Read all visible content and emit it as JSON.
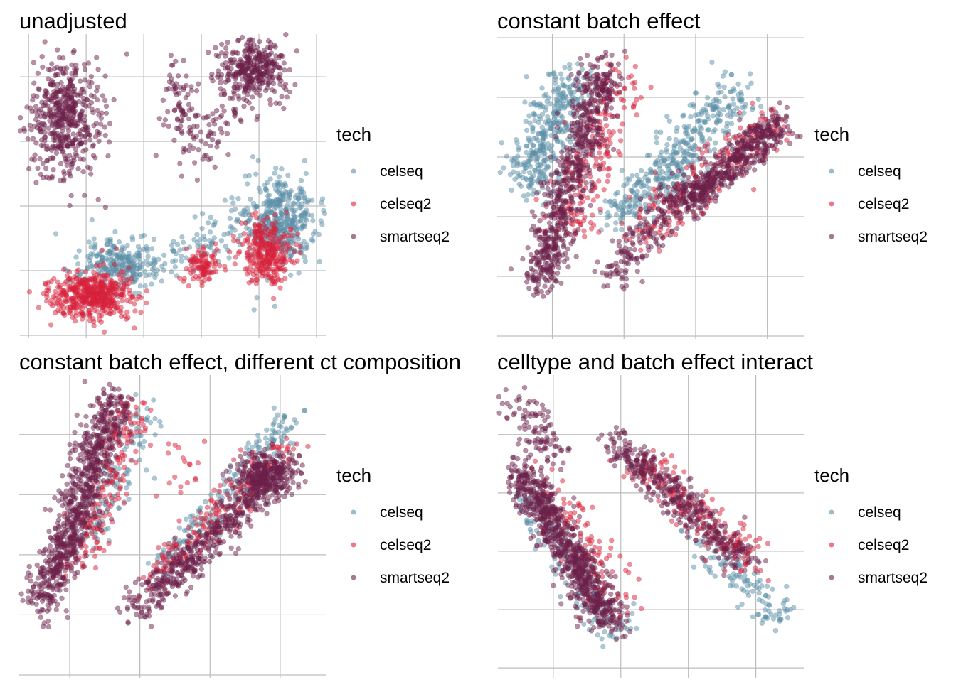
{
  "series_colors": {
    "celseq": "#5b8fa8",
    "celseq2": "#d8223b",
    "smartseq2": "#6b1f49"
  },
  "legend": {
    "title": "tech",
    "items": [
      "celseq",
      "celseq2",
      "smartseq2"
    ]
  },
  "chart_data": [
    {
      "type": "scatter",
      "title": "unadjusted",
      "grid": true,
      "axis_tick_labels": false,
      "xbreaks": [
        0,
        1,
        2,
        3,
        4,
        5
      ],
      "ybreaks": [
        0,
        1,
        2,
        3,
        4
      ],
      "xlim": [
        -0.15,
        5.16
      ],
      "ylim": [
        0,
        4.66
      ],
      "clusters": [
        {
          "series": "celseq",
          "from": [
            4.38,
            1.78
          ],
          "to": [
            4.38,
            1.78
          ],
          "spread": [
            0.3,
            0.33
          ],
          "n": 400
        },
        {
          "series": "celseq",
          "from": [
            1.2,
            1.2
          ],
          "to": [
            1.9,
            1.0
          ],
          "spread": [
            0.25,
            0.2
          ],
          "n": 250
        },
        {
          "series": "celseq",
          "from": [
            2.3,
            1.1
          ],
          "to": [
            3.7,
            1.8
          ],
          "spread": [
            0.2,
            0.18
          ],
          "n": 80
        },
        {
          "series": "celseq2",
          "from": [
            1.11,
            0.63
          ],
          "to": [
            1.11,
            0.63
          ],
          "spread": [
            0.35,
            0.18
          ],
          "n": 500
        },
        {
          "series": "celseq2",
          "from": [
            3.02,
            1.07
          ],
          "to": [
            3.02,
            1.07
          ],
          "spread": [
            0.15,
            0.14
          ],
          "n": 100
        },
        {
          "series": "celseq2",
          "from": [
            4.14,
            1.29
          ],
          "to": [
            4.14,
            1.29
          ],
          "spread": [
            0.22,
            0.24
          ],
          "n": 300
        },
        {
          "series": "smartseq2",
          "from": [
            0.62,
            3.37
          ],
          "to": [
            0.62,
            3.37
          ],
          "spread": [
            0.3,
            0.45
          ],
          "n": 500
        },
        {
          "series": "smartseq2",
          "from": [
            3.89,
            4.09
          ],
          "to": [
            3.89,
            4.09
          ],
          "spread": [
            0.3,
            0.25
          ],
          "n": 350
        },
        {
          "series": "smartseq2",
          "from": [
            2.6,
            3.5
          ],
          "to": [
            2.6,
            3.5
          ],
          "spread": [
            0.15,
            0.4
          ],
          "n": 80
        },
        {
          "series": "smartseq2",
          "from": [
            3.0,
            2.9
          ],
          "to": [
            3.6,
            3.6
          ],
          "spread": [
            0.2,
            0.2
          ],
          "n": 60
        }
      ]
    },
    {
      "type": "scatter",
      "title": "constant batch effect",
      "grid": true,
      "axis_tick_labels": false,
      "xbreaks": [
        1,
        2,
        3,
        4
      ],
      "ybreaks": [
        0,
        1,
        2,
        3,
        4,
        5
      ],
      "xlim": [
        0.23,
        4.51
      ],
      "ylim": [
        0,
        5.06
      ],
      "clusters": [
        {
          "series": "celseq",
          "from": [
            0.64,
            2.54
          ],
          "to": [
            1.23,
            4.32
          ],
          "spread": [
            0.2,
            0.2
          ],
          "n": 350
        },
        {
          "series": "celseq",
          "from": [
            1.93,
            1.94
          ],
          "to": [
            3.61,
            4.2
          ],
          "spread": [
            0.2,
            0.2
          ],
          "n": 400
        },
        {
          "series": "celseq2",
          "from": [
            1.23,
            1.7
          ],
          "to": [
            2.03,
            4.44
          ],
          "spread": [
            0.2,
            0.2
          ],
          "n": 200
        },
        {
          "series": "celseq2",
          "from": [
            2.22,
            1.7
          ],
          "to": [
            4.11,
            3.61
          ],
          "spread": [
            0.18,
            0.18
          ],
          "n": 200
        },
        {
          "series": "smartseq2",
          "from": [
            0.83,
            0.87
          ],
          "to": [
            1.73,
            4.56
          ],
          "spread": [
            0.15,
            0.15
          ],
          "n": 700
        },
        {
          "series": "smartseq2",
          "from": [
            2.82,
            2.18
          ],
          "to": [
            4.21,
            3.61
          ],
          "spread": [
            0.13,
            0.13
          ],
          "n": 500
        },
        {
          "series": "smartseq2",
          "from": [
            1.83,
            0.99
          ],
          "to": [
            3.02,
            2.65
          ],
          "spread": [
            0.15,
            0.15
          ],
          "n": 200
        }
      ]
    },
    {
      "type": "scatter",
      "title": "constant batch effect, different ct composition",
      "grid": true,
      "axis_tick_labels": false,
      "xbreaks": [
        1,
        2,
        3,
        4
      ],
      "ybreaks": [
        0,
        1,
        2,
        3,
        4
      ],
      "xlim": [
        0.28,
        4.65
      ],
      "ylim": [
        0,
        4.99
      ],
      "clusters": [
        {
          "series": "celseq",
          "from": [
            1.32,
            2.25
          ],
          "to": [
            2.03,
            4.38
          ],
          "spread": [
            0.15,
            0.15
          ],
          "n": 120
        },
        {
          "series": "celseq",
          "from": [
            2.34,
            1.78
          ],
          "to": [
            4.26,
            4.38
          ],
          "spread": [
            0.13,
            0.13
          ],
          "n": 200
        },
        {
          "series": "celseq2",
          "from": [
            1.12,
            1.78
          ],
          "to": [
            1.93,
            4.5
          ],
          "spread": [
            0.15,
            0.15
          ],
          "n": 200
        },
        {
          "series": "celseq2",
          "from": [
            2.13,
            1.54
          ],
          "to": [
            4.06,
            3.79
          ],
          "spread": [
            0.15,
            0.15
          ],
          "n": 200
        },
        {
          "series": "celseq2",
          "from": [
            2.64,
            3.43
          ],
          "to": [
            2.64,
            3.43
          ],
          "spread": [
            0.3,
            0.3
          ],
          "n": 20
        },
        {
          "series": "smartseq2",
          "from": [
            0.62,
            1.18
          ],
          "to": [
            1.63,
            4.62
          ],
          "spread": [
            0.15,
            0.15
          ],
          "n": 800
        },
        {
          "series": "smartseq2",
          "from": [
            1.93,
            1.07
          ],
          "to": [
            4.16,
            3.55
          ],
          "spread": [
            0.15,
            0.15
          ],
          "n": 500
        },
        {
          "series": "smartseq2",
          "from": [
            3.76,
            3.31
          ],
          "to": [
            3.76,
            3.31
          ],
          "spread": [
            0.2,
            0.2
          ],
          "n": 250
        }
      ]
    },
    {
      "type": "scatter",
      "title": "celltype and batch effect interact",
      "grid": true,
      "axis_tick_labels": false,
      "xbreaks": [
        1,
        2,
        3,
        4
      ],
      "ybreaks": [
        0,
        1,
        2,
        3,
        4
      ],
      "xlim": [
        0.18,
        4.71
      ],
      "ylim": [
        -0.12,
        5.02
      ],
      "clusters": [
        {
          "series": "celseq",
          "from": [
            0.6,
            2.93
          ],
          "to": [
            1.97,
            0.49
          ],
          "spread": [
            0.15,
            0.15
          ],
          "n": 150
        },
        {
          "series": "celseq",
          "from": [
            3.13,
            2.2
          ],
          "to": [
            4.39,
            0.85
          ],
          "spread": [
            0.15,
            0.15
          ],
          "n": 120
        },
        {
          "series": "celseq2",
          "from": [
            0.81,
            3.17
          ],
          "to": [
            2.07,
            0.98
          ],
          "spread": [
            0.2,
            0.2
          ],
          "n": 120
        },
        {
          "series": "celseq2",
          "from": [
            2.28,
            3.54
          ],
          "to": [
            3.97,
            1.83
          ],
          "spread": [
            0.15,
            0.15
          ],
          "n": 200
        },
        {
          "series": "smartseq2",
          "from": [
            0.49,
            3.41
          ],
          "to": [
            1.86,
            0.73
          ],
          "spread": [
            0.15,
            0.15
          ],
          "n": 800
        },
        {
          "series": "smartseq2",
          "from": [
            0.39,
            4.63
          ],
          "to": [
            1.02,
            3.66
          ],
          "spread": [
            0.15,
            0.15
          ],
          "n": 100
        },
        {
          "series": "smartseq2",
          "from": [
            1.86,
            3.9
          ],
          "to": [
            3.86,
            1.83
          ],
          "spread": [
            0.15,
            0.15
          ],
          "n": 400
        }
      ]
    }
  ]
}
